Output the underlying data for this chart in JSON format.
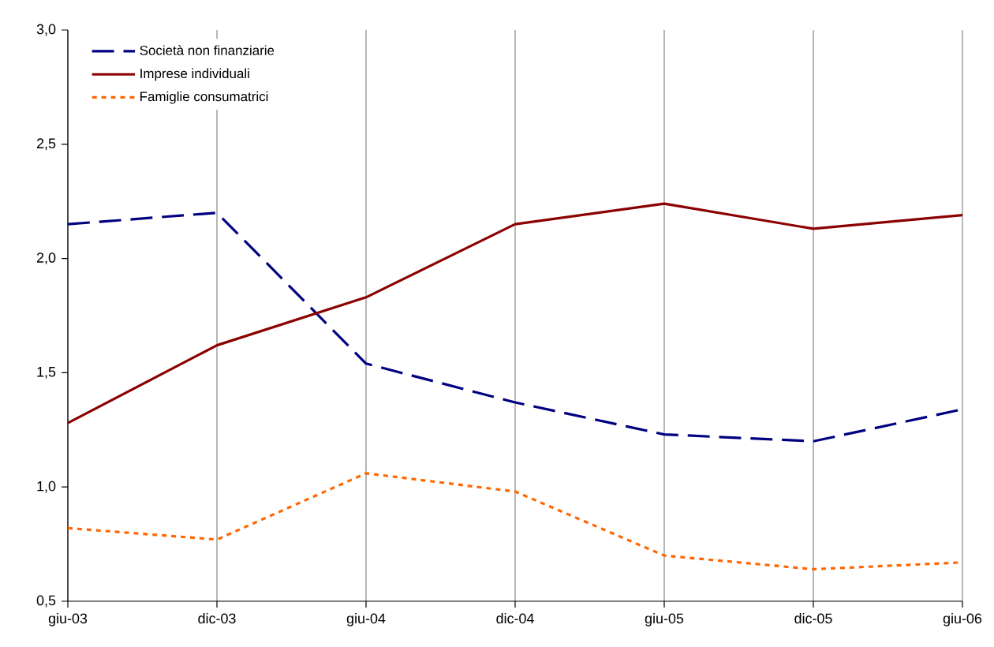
{
  "chart_data": {
    "type": "line",
    "categories": [
      "giu-03",
      "dic-03",
      "giu-04",
      "dic-04",
      "giu-05",
      "dic-05",
      "giu-06"
    ],
    "series": [
      {
        "name": "Società non finanziarie",
        "color": "#000080",
        "line_style": "dashed",
        "values": [
          2.15,
          2.2,
          1.54,
          1.37,
          1.23,
          1.2,
          1.34
        ]
      },
      {
        "name": "Imprese individuali",
        "color": "#8b0000",
        "line_style": "solid",
        "values": [
          1.28,
          1.62,
          1.83,
          2.15,
          2.24,
          2.13,
          2.19
        ]
      },
      {
        "name": "Famiglie consumatrici",
        "color": "#ff6600",
        "line_style": "dotted",
        "values": [
          0.82,
          0.77,
          1.06,
          0.98,
          0.7,
          0.64,
          0.67
        ]
      }
    ],
    "ylim": [
      0.5,
      3.0
    ],
    "yticks": [
      {
        "value": 0.5,
        "label": "0,5"
      },
      {
        "value": 1.0,
        "label": "1,0"
      },
      {
        "value": 1.5,
        "label": "1,5"
      },
      {
        "value": 2.0,
        "label": "2,0"
      },
      {
        "value": 2.5,
        "label": "2,5"
      },
      {
        "value": 3.0,
        "label": "3,0"
      }
    ],
    "grid": "x",
    "legend": "top left",
    "marker": "none"
  }
}
